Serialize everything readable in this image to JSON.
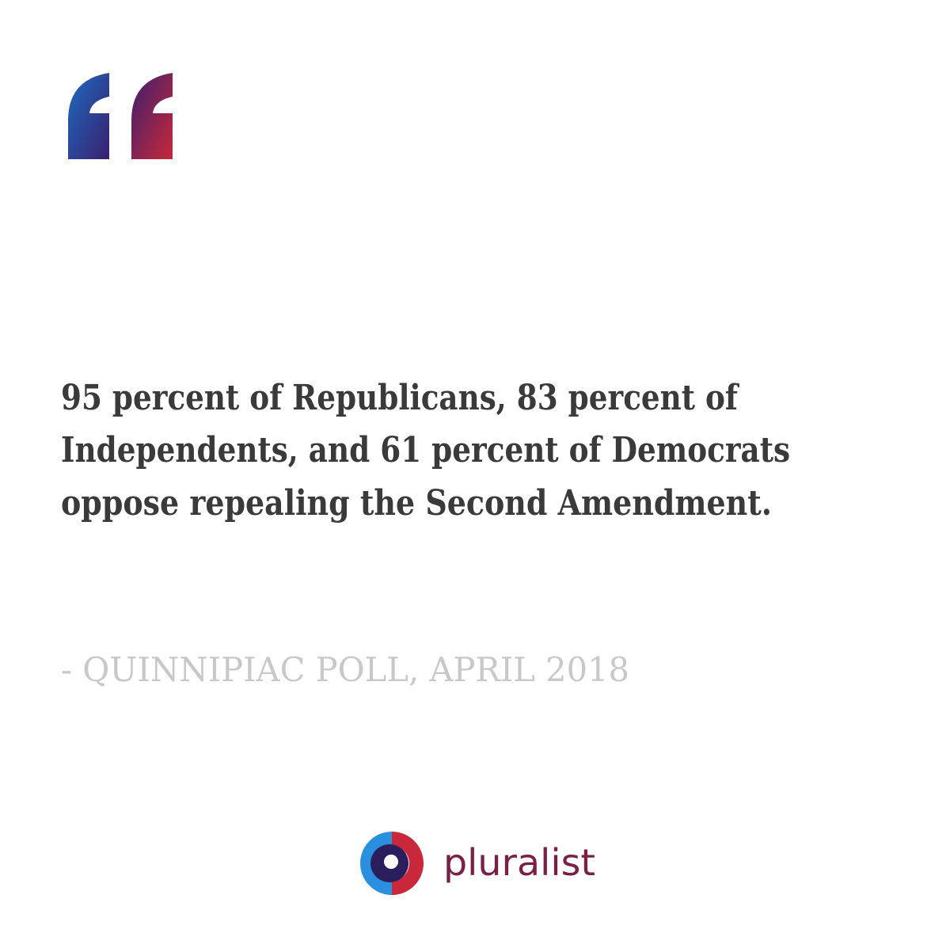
{
  "quote": {
    "lines": [
      "95 percent of Republicans, 83 percent of",
      "Independents, and 61 percent of Democrats",
      "oppose repealing the Second Amendment."
    ],
    "attribution": "- QUINNIPIAC POLL, APRIL 2018"
  },
  "brand": {
    "name": "pluralist"
  }
}
